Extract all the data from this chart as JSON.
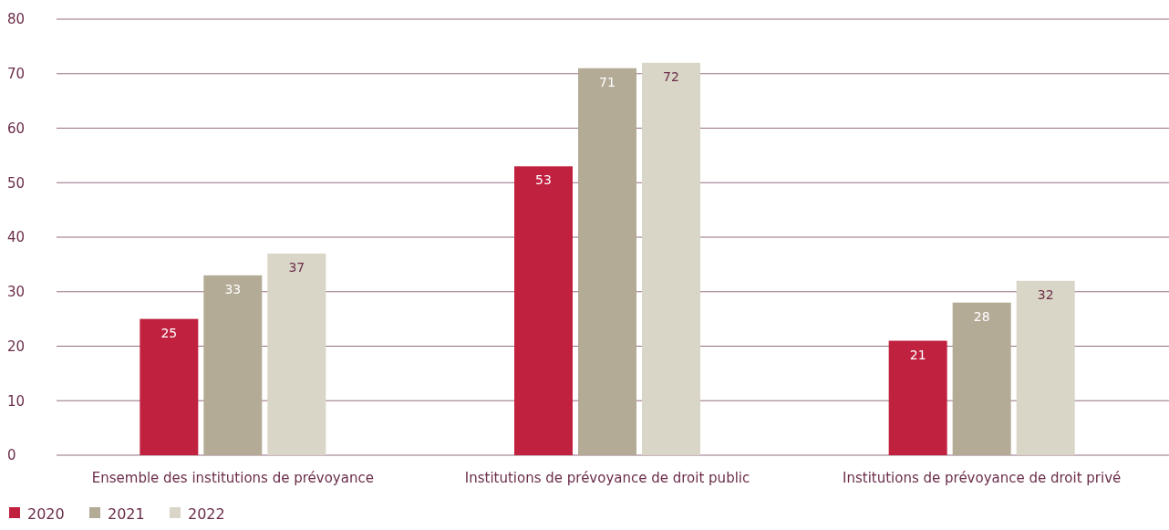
{
  "chart_data": {
    "type": "bar",
    "categories": [
      "Ensemble des institutions de prévoyance",
      "Institutions de prévoyance de droit public",
      "Institutions de prévoyance de droit privé"
    ],
    "series": [
      {
        "name": "2020",
        "color": "#c0213f",
        "values": [
          25,
          53,
          21
        ]
      },
      {
        "name": "2021",
        "color": "#b3ab96",
        "values": [
          33,
          71,
          28
        ]
      },
      {
        "name": "2022",
        "color": "#d9d6c7",
        "values": [
          37,
          72,
          32
        ]
      }
    ],
    "ylim": [
      0,
      80
    ],
    "yticks": [
      0,
      10,
      20,
      30,
      40,
      50,
      60,
      70,
      80
    ],
    "grid": "y",
    "legend": "bottom left",
    "data_labels": true
  }
}
